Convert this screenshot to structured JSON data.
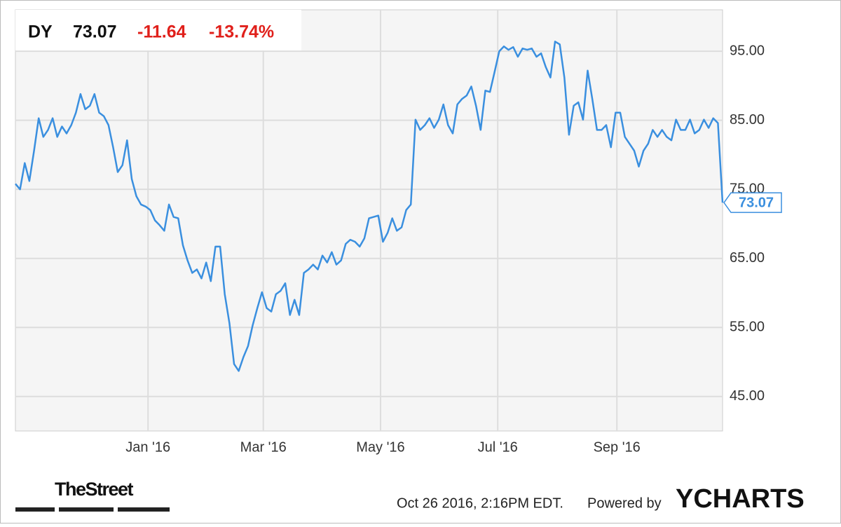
{
  "chart_data": {
    "type": "line",
    "ticker": "DY",
    "price": 73.07,
    "change": "-11.64",
    "change_pct": "-13.74%",
    "timestamp": "Oct 26 2016, 2:16PM EDT.",
    "powered_by": "Powered by",
    "brand": "YCHARTS",
    "source_logo": "TheStreet",
    "xlim": [
      "2015-10-24",
      "2016-10-26"
    ],
    "xticks": [
      {
        "value": "2016-01",
        "label": "Jan '16"
      },
      {
        "value": "2016-03",
        "label": "Mar '16"
      },
      {
        "value": "2016-05",
        "label": "May '16"
      },
      {
        "value": "2016-07",
        "label": "Jul '16"
      },
      {
        "value": "2016-09",
        "label": "Sep '16"
      }
    ],
    "ylim": [
      40,
      101
    ],
    "yticks": [
      {
        "value": 45,
        "label": "45.00"
      },
      {
        "value": 55,
        "label": "55.00"
      },
      {
        "value": 65,
        "label": "65.00"
      },
      {
        "value": 75,
        "label": "75.00"
      },
      {
        "value": 85,
        "label": "85.00"
      },
      {
        "value": 95,
        "label": "95.00"
      }
    ],
    "grid": true,
    "series": [
      {
        "name": "DY",
        "color": "#3a8fdf",
        "values": [
          75.8,
          75.0,
          78.8,
          76.2,
          80.6,
          85.3,
          82.6,
          83.6,
          85.3,
          82.6,
          84.1,
          83.1,
          84.3,
          86.1,
          88.8,
          86.6,
          87.1,
          88.8,
          86.1,
          85.6,
          84.3,
          81.1,
          77.5,
          78.5,
          82.1,
          76.5,
          74.0,
          72.8,
          72.5,
          72.0,
          70.5,
          69.8,
          69.0,
          72.8,
          71.0,
          70.8,
          66.9,
          64.7,
          62.9,
          63.4,
          62.1,
          64.4,
          61.7,
          66.7,
          66.7,
          59.8,
          55.6,
          49.7,
          48.7,
          50.7,
          52.3,
          55.3,
          57.8,
          60.1,
          57.8,
          57.3,
          59.8,
          60.3,
          61.4,
          56.8,
          59.0,
          56.8,
          62.9,
          63.4,
          64.1,
          63.4,
          65.4,
          64.4,
          65.9,
          64.1,
          64.7,
          67.1,
          67.7,
          67.4,
          66.7,
          67.9,
          70.8,
          71.0,
          71.2,
          67.4,
          68.7,
          70.8,
          69.0,
          69.5,
          72.0,
          72.8,
          85.1,
          83.6,
          84.3,
          85.3,
          83.9,
          85.1,
          87.3,
          84.3,
          83.1,
          87.3,
          88.1,
          88.6,
          89.9,
          87.1,
          83.6,
          89.3,
          89.1,
          92.0,
          95.0,
          95.7,
          95.2,
          95.6,
          94.2,
          95.4,
          95.2,
          95.4,
          94.2,
          94.7,
          92.7,
          91.2,
          96.4,
          96.0,
          91.2,
          82.9,
          87.1,
          87.6,
          85.1,
          92.2,
          88.1,
          83.6,
          83.6,
          84.3,
          81.1,
          86.1,
          86.1,
          82.6,
          81.6,
          80.6,
          78.3,
          80.6,
          81.6,
          83.6,
          82.6,
          83.6,
          82.6,
          82.1,
          85.1,
          83.6,
          83.6,
          85.1,
          83.1,
          83.6,
          85.1,
          83.9,
          85.3,
          84.6,
          73.07
        ]
      }
    ]
  }
}
